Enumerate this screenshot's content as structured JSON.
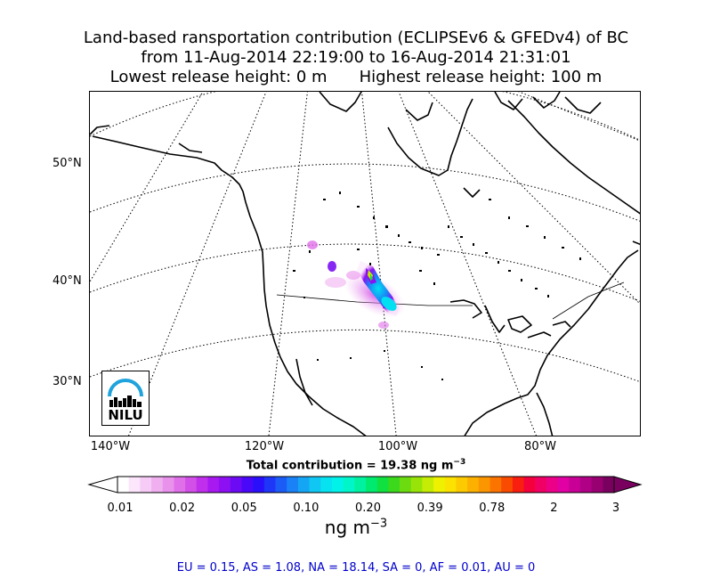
{
  "title": {
    "line1": "Land-based ransportation contribution (ECLIPSEv6 & GFEDv4) of BC",
    "line2": "from 11-Aug-2014 22:19:00 to 16-Aug-2014 21:31:01",
    "line3a": "Lowest release height: 0 m",
    "line3b": "Highest release height: 100 m"
  },
  "map": {
    "lat_labels": [
      "50°N",
      "40°N",
      "30°N"
    ],
    "lon_labels": [
      "140°W",
      "120°W",
      "100°W",
      "80°W"
    ],
    "logo": "NILU",
    "logo_color": "#1fa3dc"
  },
  "total_contribution": "Total contribution = 19.38 ng m",
  "total_exp": "−3",
  "colorbar": {
    "ticks": [
      "0.01",
      "0.02",
      "0.05",
      "0.10",
      "0.20",
      "0.39",
      "0.78",
      "2",
      "3"
    ],
    "unit": "ng m",
    "unit_exp": "−3",
    "colors": [
      "#ffffff",
      "#fbe6fb",
      "#f6ccf6",
      "#f0b0f0",
      "#e992ec",
      "#e070ea",
      "#d24fe8",
      "#c030ec",
      "#a818f0",
      "#8c10f2",
      "#6c0af4",
      "#4a08f8",
      "#2a10fa",
      "#1e36f8",
      "#1c5cf6",
      "#1a82f6",
      "#14a6f4",
      "#10c6f2",
      "#06e2f0",
      "#00f2e8",
      "#00f6c8",
      "#00f2a0",
      "#00ea70",
      "#10e040",
      "#3cd81c",
      "#6cdc10",
      "#98e408",
      "#c4ec04",
      "#eef200",
      "#fbe200",
      "#fcca00",
      "#fcb000",
      "#fc9600",
      "#fc7400",
      "#fa4c00",
      "#f81e10",
      "#f4003c",
      "#f00064",
      "#ec0088",
      "#e000a4",
      "#c80096",
      "#b00086",
      "#980072",
      "#7a0060"
    ]
  },
  "regions": "EU = 0.15,  AS = 1.08,  NA = 18.14,  SA = 0,  AF = 0.01,  AU = 0"
}
